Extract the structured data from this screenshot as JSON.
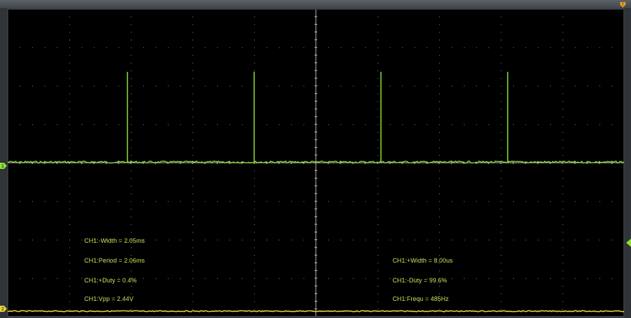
{
  "measurements": {
    "left": [
      "CH1:-Width = 2.05ms",
      "CH1:Period = 2.06ms",
      "CH1:+Duty = 0.4%",
      "CH1:Vpp = 2.44V"
    ],
    "right": [
      "CH1:+Width = 8.00us",
      "CH1:-Duty = 99.6%",
      "CH1:Frequ = 485Hz"
    ]
  },
  "markers": {
    "ch1_ground": "1",
    "ch2_ground": "2",
    "trigger_top": "T"
  },
  "colors": {
    "screen_bg": "#000000",
    "grid": "#8a8a8a",
    "ch1": "#8fe33a",
    "ch2": "#e8d437",
    "text": "#c9e85a",
    "trigger": "#f0a020"
  }
}
